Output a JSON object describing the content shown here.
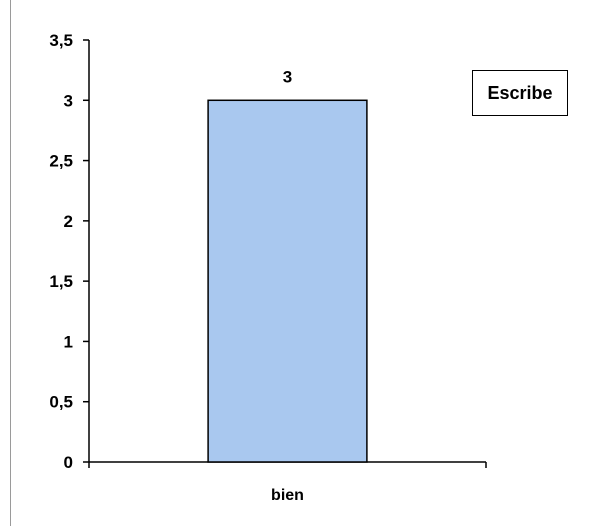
{
  "chart_data": {
    "type": "bar",
    "categories": [
      "bien"
    ],
    "values": [
      3
    ],
    "data_labels": [
      "3"
    ],
    "ylim": [
      0,
      3.5
    ],
    "y_ticks": [
      0,
      0.5,
      1,
      1.5,
      2,
      2.5,
      3,
      3.5
    ],
    "y_tick_labels": [
      "0",
      "0,5",
      "1",
      "1,5",
      "2",
      "2,5",
      "3",
      "3,5"
    ],
    "bar_color": "#a9c8ef",
    "bar_edge_color": "#000000",
    "grid": false,
    "legend_position": "top-right",
    "legend_label": "Escribe"
  }
}
